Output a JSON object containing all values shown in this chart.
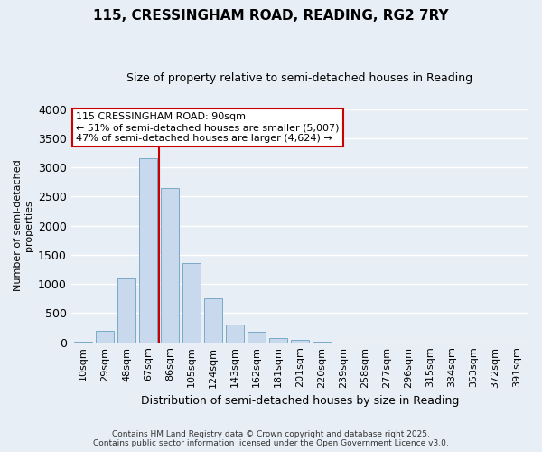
{
  "title": "115, CRESSINGHAM ROAD, READING, RG2 7RY",
  "subtitle": "Size of property relative to semi-detached houses in Reading",
  "xlabel": "Distribution of semi-detached houses by size in Reading",
  "ylabel": "Number of semi-detached\nproperties",
  "bar_labels": [
    "10sqm",
    "29sqm",
    "48sqm",
    "67sqm",
    "86sqm",
    "105sqm",
    "124sqm",
    "143sqm",
    "162sqm",
    "181sqm",
    "201sqm",
    "220sqm",
    "239sqm",
    "258sqm",
    "277sqm",
    "296sqm",
    "315sqm",
    "334sqm",
    "353sqm",
    "372sqm",
    "391sqm"
  ],
  "bar_values": [
    5,
    190,
    1090,
    3150,
    2650,
    1360,
    750,
    310,
    175,
    75,
    45,
    10,
    2,
    0,
    0,
    0,
    0,
    0,
    0,
    0,
    0
  ],
  "bar_color": "#c8d8ed",
  "bar_edge_color": "#7aaac8",
  "vline_color": "#cc0000",
  "vline_x_index": 3.5,
  "ylim": [
    0,
    4000
  ],
  "yticks": [
    0,
    500,
    1000,
    1500,
    2000,
    2500,
    3000,
    3500,
    4000
  ],
  "annotation_title": "115 CRESSINGHAM ROAD: 90sqm",
  "annotation_line1": "← 51% of semi-detached houses are smaller (5,007)",
  "annotation_line2": "47% of semi-detached houses are larger (4,624) →",
  "annotation_box_color": "#ffffff",
  "annotation_box_edge": "#cc0000",
  "footer_line1": "Contains HM Land Registry data © Crown copyright and database right 2025.",
  "footer_line2": "Contains public sector information licensed under the Open Government Licence v3.0.",
  "bg_color": "#e8eef5",
  "grid_color": "#ffffff"
}
